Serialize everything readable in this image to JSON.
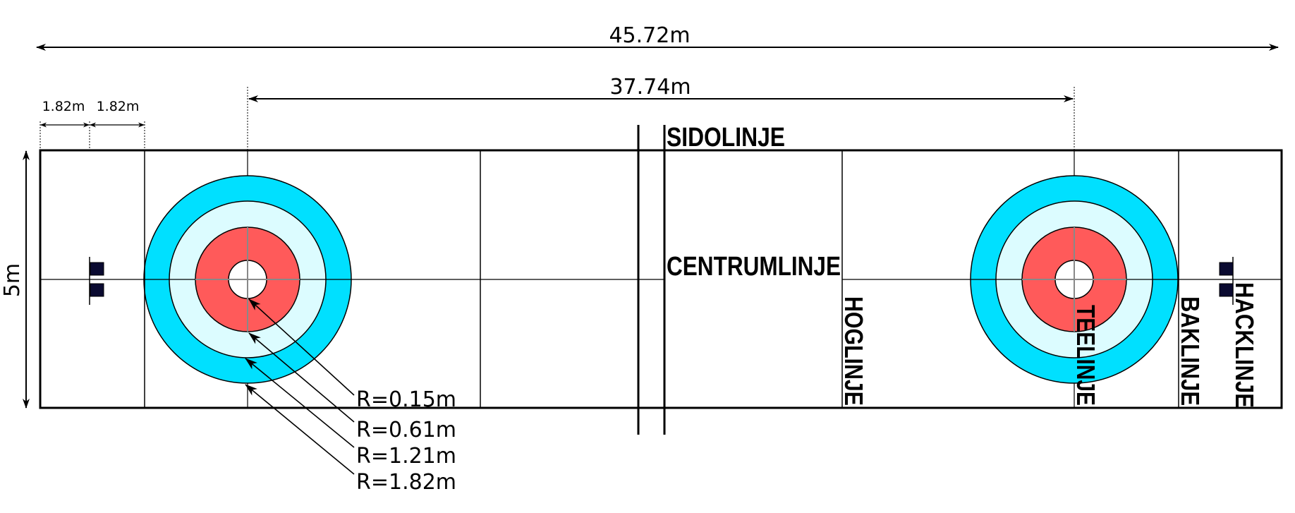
{
  "dimensions": {
    "total_length": "45.72m",
    "tee_to_tee": "37.74m",
    "hack_offset": "1.82m",
    "back_offset": "1.82m",
    "width": "5m"
  },
  "lines": {
    "side": "SIDOLINJE",
    "center": "CENTRUMLINJE",
    "hog": "HOGLINJE",
    "tee": "TEELINJE",
    "back": "BAKLINJE",
    "hack": "HACKLINJE"
  },
  "radii": [
    "R=0.15m",
    "R=0.61m",
    "R=1.21m",
    "R=1.82m"
  ],
  "colors": {
    "outer_ring": "#00e0ff",
    "middle_ring": "#dcfcff",
    "inner_ring": "#ff5a5a",
    "button": "#ffffff",
    "hack": "#0a0a30",
    "line": "#000000"
  }
}
